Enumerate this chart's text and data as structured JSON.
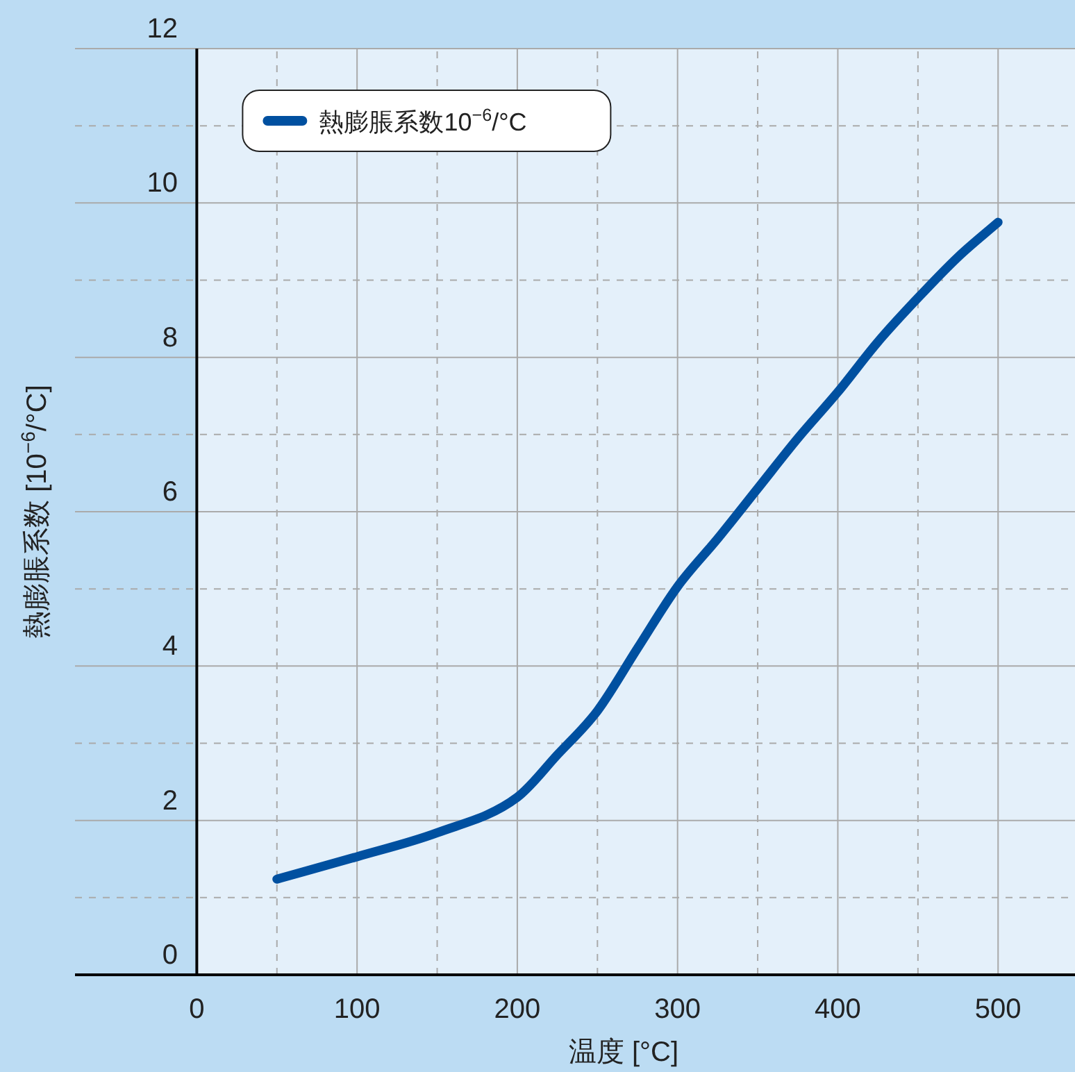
{
  "chart_data": {
    "type": "line",
    "xlabel": "温度 [°C]",
    "ylabel": "熱膨脹系数 [10$^{−6}$/°C]",
    "x": [
      50,
      100,
      150,
      200,
      225,
      250,
      275,
      300,
      325,
      350,
      375,
      400,
      425,
      450,
      475,
      500
    ],
    "series": [
      {
        "name": "熱膨脹系数10$^{−6}$/°C",
        "color": "#0050a0",
        "values": [
          1.24,
          1.53,
          1.84,
          2.3,
          2.85,
          3.42,
          4.23,
          5.03,
          5.65,
          6.3,
          6.95,
          7.55,
          8.2,
          8.77,
          9.3,
          9.75
        ]
      }
    ],
    "bands": [
      {
        "axis": "x",
        "from": 0,
        "to": 548,
        "color": "#e4f0fa"
      }
    ],
    "xlim": [
      -76,
      548
    ],
    "ylim": [
      0,
      12
    ],
    "xticks": [
      0,
      {
        "value": 50,
        "label": null
      },
      100,
      {
        "value": 150,
        "label": null
      },
      200,
      {
        "value": 250,
        "label": null
      },
      300,
      {
        "value": 350,
        "label": null
      },
      400,
      {
        "value": 450,
        "label": null
      },
      500
    ],
    "yticks": [
      0,
      {
        "value": 1,
        "label": null
      },
      2,
      {
        "value": 3,
        "label": null
      },
      4,
      {
        "value": 5,
        "label": null
      },
      6,
      {
        "value": 7,
        "label": null
      },
      8,
      {
        "value": 9,
        "label": null
      },
      10,
      {
        "value": 11,
        "label": null
      },
      12
    ],
    "grid": true,
    "legend": "top left",
    "line_style": "solid"
  }
}
